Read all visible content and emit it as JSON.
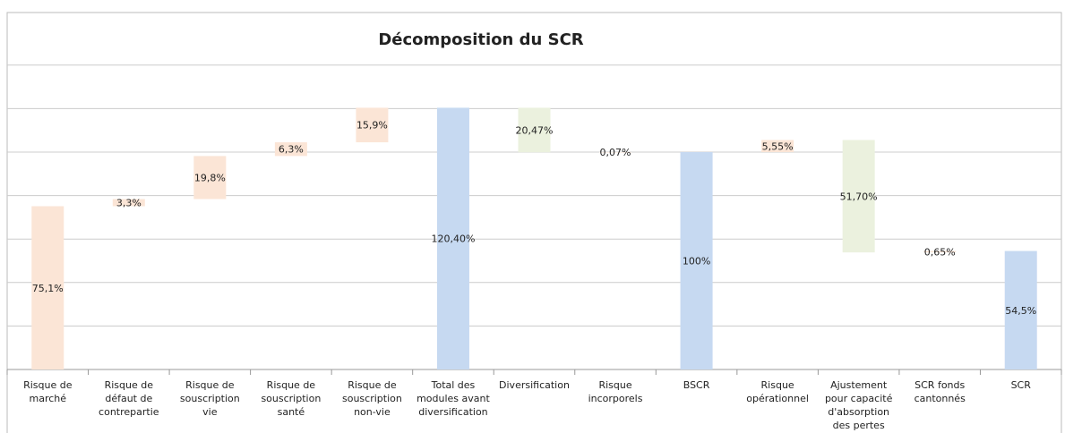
{
  "chart_data": {
    "type": "waterfall",
    "title": "Décomposition du SCR",
    "categories": [
      "Risque de marché",
      "Risque de défaut de contrepartie",
      "Risque de souscription vie",
      "Risque de souscription santé",
      "Risque de souscription non-vie",
      "Total des modules avant diversification",
      "Diversification",
      "Risque incorporels",
      "BSCR",
      "Risque opérationnel",
      "Ajustement pour capacité d'absorption des pertes",
      "SCR fonds cantonnés",
      "SCR"
    ],
    "values": [
      75.1,
      3.3,
      19.8,
      6.3,
      15.9,
      120.4,
      20.47,
      0.07,
      100,
      5.55,
      51.7,
      0.65,
      54.5
    ],
    "value_labels": [
      "75,1%",
      "3,3%",
      "19,8%",
      "6,3%",
      "15,9%",
      "120,40%",
      "20,47%",
      "0,07%",
      "100%",
      "5,55%",
      "51,70%",
      "0,65%",
      "54,5%"
    ],
    "direction": [
      "increase",
      "increase",
      "increase",
      "increase",
      "increase",
      "total",
      "decrease",
      "increase",
      "total",
      "increase",
      "decrease",
      "increase",
      "total"
    ],
    "colors": {
      "increase": "#fbe5d6",
      "decrease": "#ebf1de",
      "total": "#c6d9f1"
    },
    "ylim": [
      0,
      160
    ],
    "yticks": [
      0,
      20,
      40,
      60,
      80,
      100,
      120,
      140
    ],
    "grid": true
  }
}
